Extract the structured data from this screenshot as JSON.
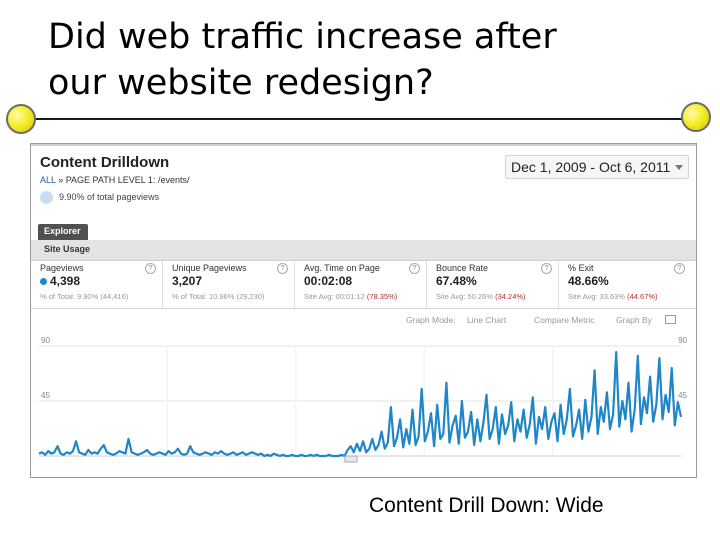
{
  "slide": {
    "title_line1": "Did web traffic increase after",
    "title_line2": "our website redesign?",
    "caption": "Content Drill Down: Wide"
  },
  "report": {
    "title": "Content Drilldown",
    "breadcrumb_all": "ALL",
    "breadcrumb_level": "» PAGE PATH LEVEL 1:",
    "breadcrumb_path": "/events/",
    "pct_text": "9.90% of total pageviews",
    "date_range": "Dec 1, 2009 - Oct 6, 2011",
    "explorer_tab": "Explorer",
    "subtab": "Site Usage",
    "graph_mode_label": "Graph Mode:",
    "graph_mode_value": "Line Chart",
    "compare_metric": "Compare Metric",
    "graph_by": "Graph By"
  },
  "metrics": [
    {
      "name": "Pageviews",
      "value": "4,398",
      "sub_a": "% of Total: 9.90% (44,416)",
      "sub_b": ""
    },
    {
      "name": "Unique Pageviews",
      "value": "3,207",
      "sub_a": "% of Total: 10.96% (29,230)",
      "sub_b": ""
    },
    {
      "name": "Avg. Time on Page",
      "value": "00:02:08",
      "sub_a": "Site Avg: 00:01:12",
      "sub_b": "(78.35%)"
    },
    {
      "name": "Bounce Rate",
      "value": "67.48%",
      "sub_a": "Site Avg: 50.26%",
      "sub_b": "(34.24%)"
    },
    {
      "name": "% Exit",
      "value": "48.66%",
      "sub_a": "Site Avg: 33.63%",
      "sub_b": "(44.67%)"
    }
  ],
  "colors": {
    "series": "#1f86c8",
    "accent_dot": "#f6ee2a"
  },
  "chart_data": {
    "type": "line",
    "title": "",
    "xlabel": "",
    "ylabel": "",
    "ylim": [
      0,
      90
    ],
    "y_ticks": [
      "90",
      "45"
    ],
    "series": [
      {
        "name": "Pageviews",
        "values": [
          2,
          3,
          1,
          4,
          2,
          3,
          8,
          2,
          1,
          3,
          2,
          4,
          12,
          3,
          2,
          1,
          5,
          2,
          3,
          2,
          6,
          9,
          3,
          2,
          1,
          2,
          4,
          3,
          2,
          14,
          3,
          2,
          1,
          2,
          3,
          5,
          2,
          1,
          2,
          3,
          2,
          1,
          4,
          2,
          3,
          6,
          2,
          1,
          2,
          8,
          3,
          2,
          1,
          2,
          3,
          2,
          1,
          3,
          2,
          4,
          2,
          1,
          2,
          3,
          1,
          2,
          3,
          1,
          2,
          3,
          2,
          1,
          2,
          0,
          1,
          0,
          2,
          1,
          0,
          1,
          0,
          0,
          1,
          0,
          0,
          1,
          0,
          0,
          1,
          0,
          1,
          0,
          0,
          0,
          1,
          0,
          0,
          0,
          1,
          0,
          5,
          8,
          3,
          10,
          4,
          12,
          3,
          6,
          14,
          5,
          9,
          20,
          6,
          11,
          40,
          8,
          15,
          30,
          7,
          22,
          10,
          38,
          9,
          16,
          55,
          12,
          20,
          35,
          8,
          42,
          14,
          18,
          60,
          11,
          25,
          33,
          10,
          45,
          15,
          20,
          36,
          9,
          30,
          12,
          28,
          50,
          14,
          22,
          40,
          10,
          34,
          18,
          25,
          44,
          12,
          30,
          20,
          38,
          15,
          26,
          48,
          10,
          32,
          22,
          40,
          14,
          28,
          35,
          12,
          42,
          18,
          30,
          55,
          16,
          25,
          38,
          14,
          46,
          20,
          32,
          70,
          18,
          40,
          28,
          52,
          22,
          34,
          85,
          24,
          45,
          30,
          60,
          20,
          38,
          82,
          26,
          48,
          35,
          65,
          28,
          42,
          80,
          30,
          50,
          36,
          72,
          25,
          44,
          32
        ]
      }
    ]
  }
}
